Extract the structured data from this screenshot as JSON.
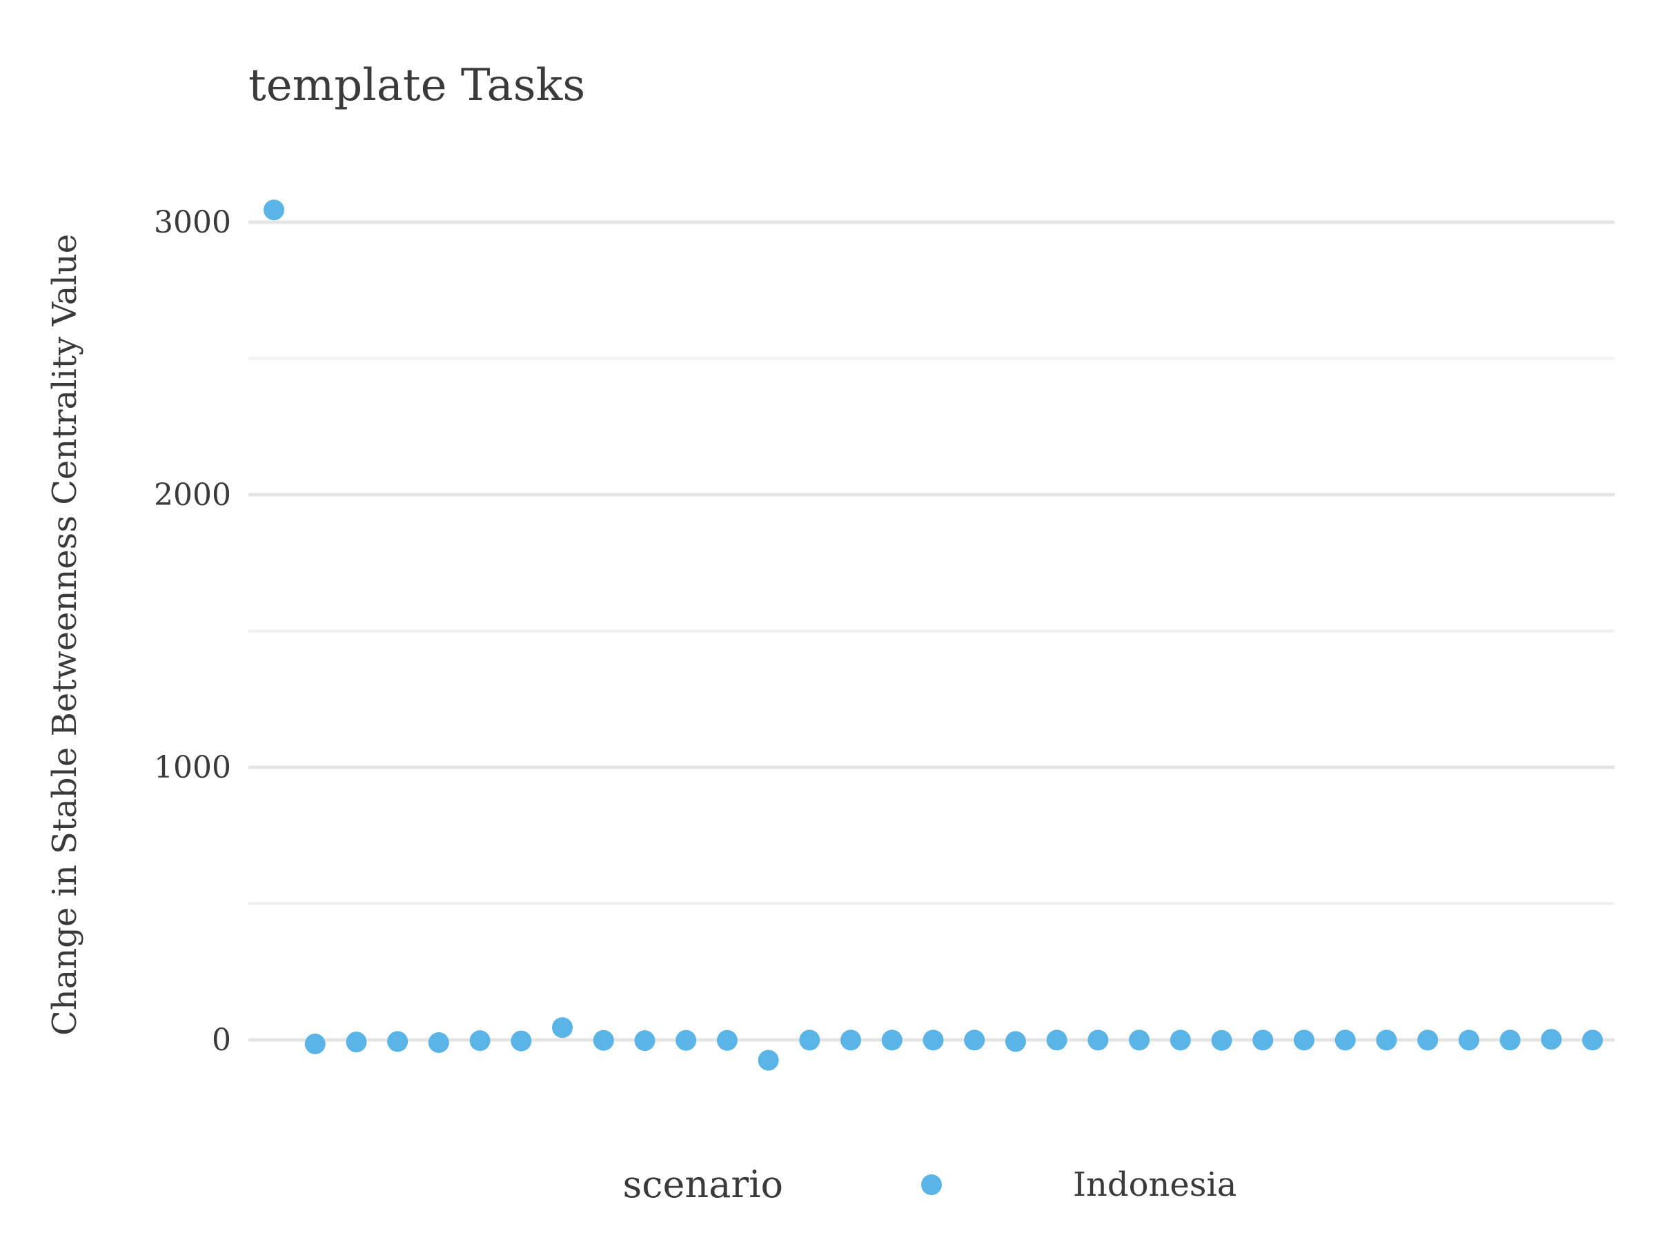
{
  "chart_data": {
    "type": "scatter",
    "title": "template Tasks",
    "xlabel": "",
    "ylabel": "Change in Stable Betweenness Centrality Value",
    "x": [
      1,
      2,
      3,
      4,
      5,
      6,
      7,
      8,
      9,
      10,
      11,
      12,
      13,
      14,
      15,
      16,
      17,
      18,
      19,
      20,
      21,
      22,
      23,
      24,
      25,
      26,
      27,
      28,
      29,
      30,
      31,
      32,
      33
    ],
    "series": [
      {
        "name": "Indonesia",
        "color": "#5ab4e5",
        "values": [
          3045,
          -15,
          -8,
          -6,
          -10,
          -3,
          -4,
          45,
          -2,
          -3,
          -2,
          -2,
          -75,
          -1,
          -1,
          -1,
          -1,
          -1,
          -6,
          -1,
          -1,
          -1,
          -1,
          -2,
          -1,
          -1,
          -1,
          -1,
          -1,
          -1,
          -1,
          2,
          -1
        ]
      }
    ],
    "ylim": [
      -270,
      3100
    ],
    "yticks": [
      0,
      1000,
      2000,
      3000
    ],
    "ytick_labels": [
      "0",
      "1000",
      "2000",
      "3000"
    ],
    "yminor": [
      500,
      1500,
      2500
    ],
    "grid": true,
    "legend": {
      "title": "scenario",
      "position": "bottom"
    }
  }
}
